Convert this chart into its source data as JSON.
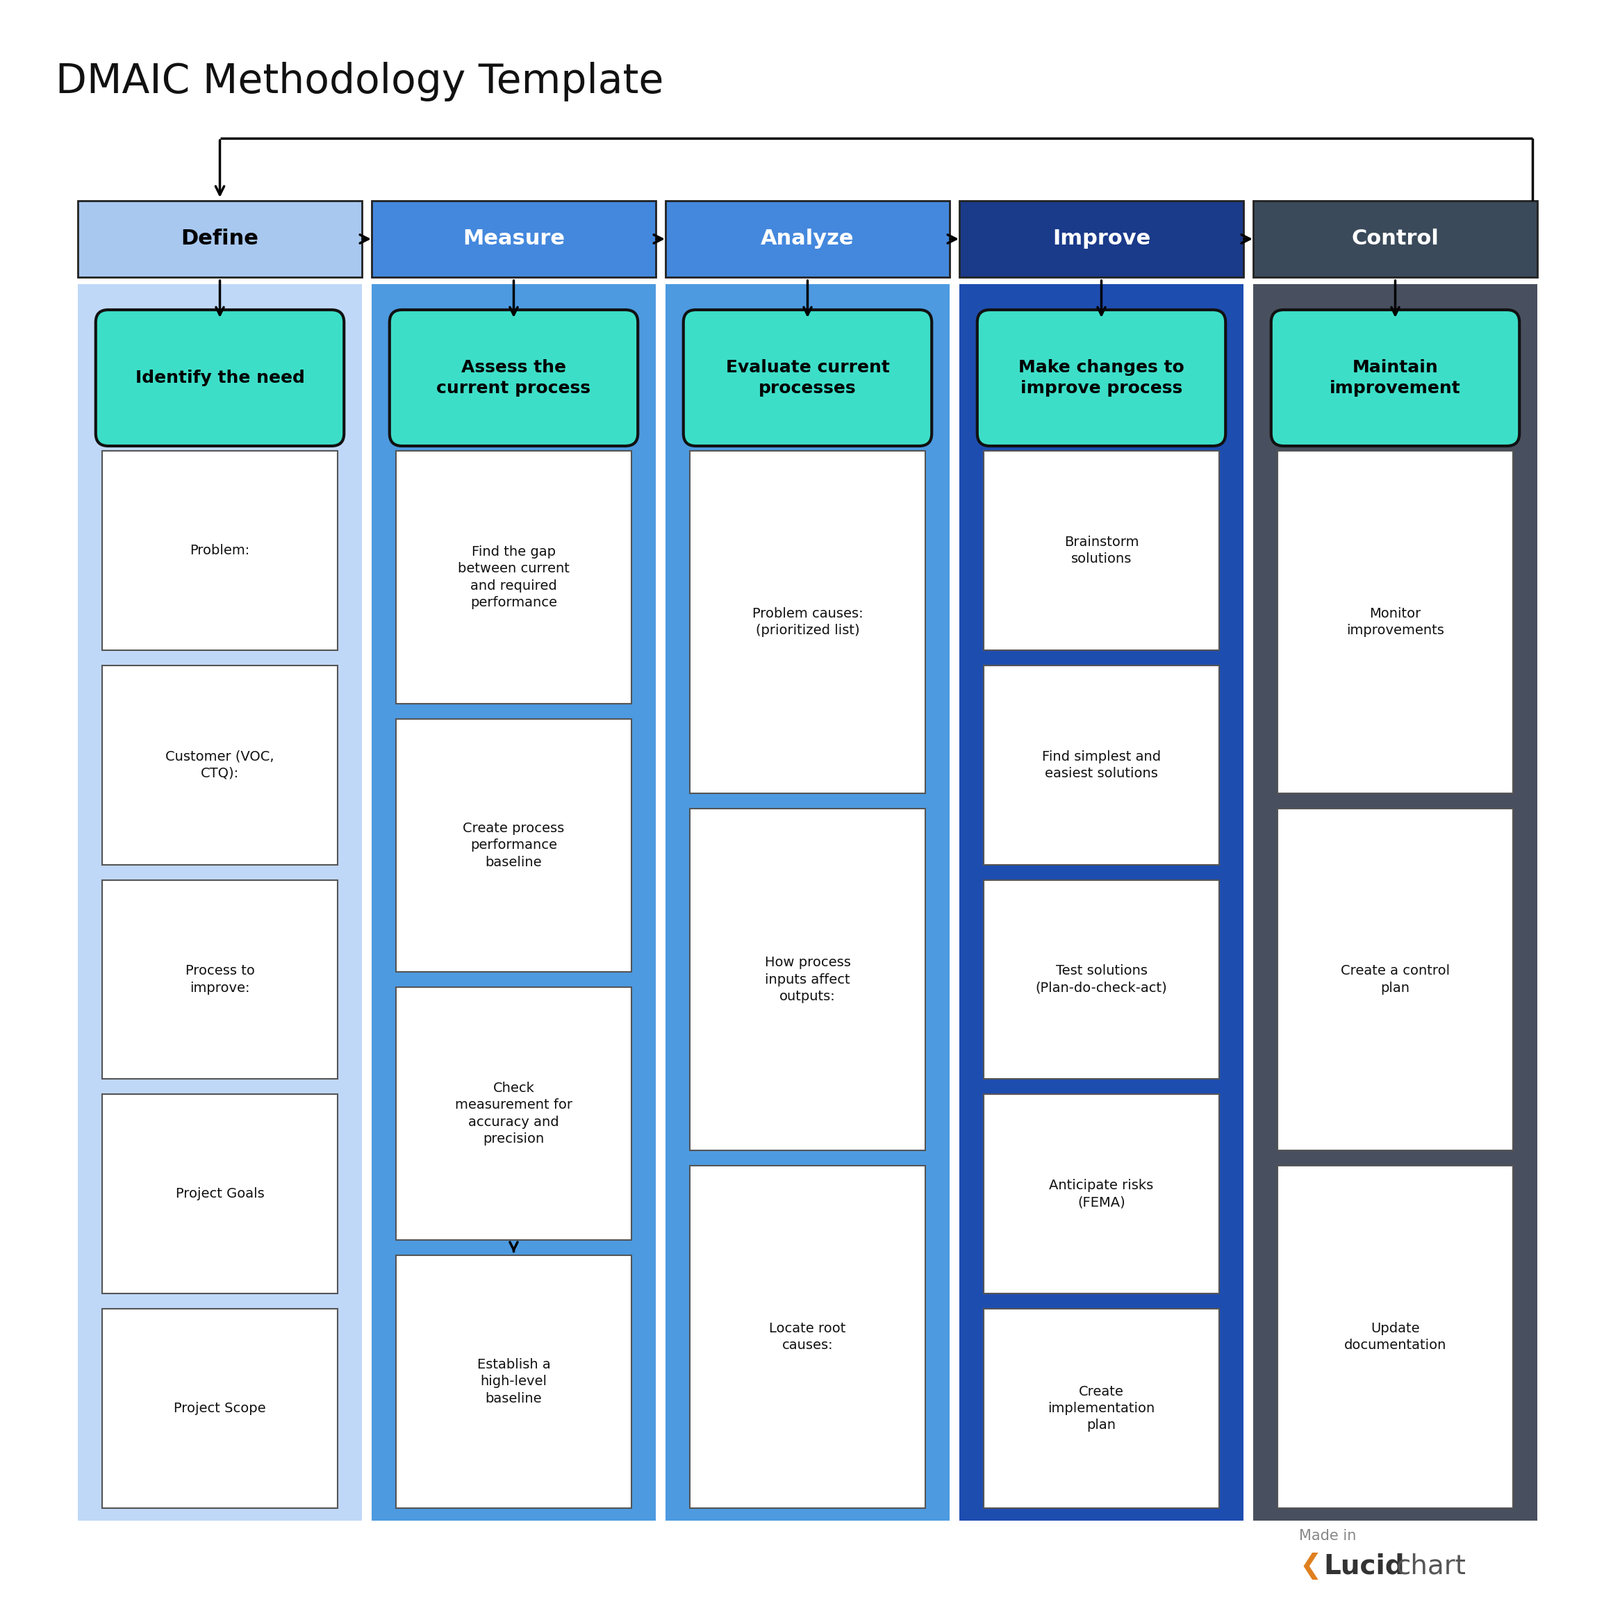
{
  "title": "DMAIC Methodology Template",
  "title_fontsize": 42,
  "phases": [
    "Define",
    "Measure",
    "Analyze",
    "Improve",
    "Control"
  ],
  "phase_colors": [
    "#a8c8f0",
    "#4488dd",
    "#4488dd",
    "#1a3a8a",
    "#3a4a5a"
  ],
  "phase_text_colors": [
    "#000000",
    "#ffffff",
    "#ffffff",
    "#ffffff",
    "#ffffff"
  ],
  "column_colors": [
    "#c0d8f8",
    "#4d9ae0",
    "#4d9ae0",
    "#1e4db0",
    "#484f5e"
  ],
  "teal_color": "#3ddec8",
  "sub_titles": [
    "Identify the need",
    "Assess the\ncurrent process",
    "Evaluate current\nprocesses",
    "Make changes to\nimprove process",
    "Maintain\nimprovement"
  ],
  "items": [
    [
      "Problem:",
      "Customer (VOC,\nCTQ):",
      "Process to\nimprove:",
      "Project Goals",
      "Project Scope"
    ],
    [
      "Find the gap\nbetween current\nand required\nperformance",
      "Create process\nperformance\nbaseline",
      "Check\nmeasurement for\naccuracy and\nprecision",
      "Establish a\nhigh-level\nbaseline"
    ],
    [
      "Problem causes:\n(prioritized list)",
      "How process\ninputs affect\noutputs:",
      "Locate root\ncauses:"
    ],
    [
      "Brainstorm\nsolutions",
      "Find simplest and\neasiest solutions",
      "Test solutions\n(Plan-do-check-act)",
      "Anticipate risks\n(FEMA)",
      "Create\nimplementation\nplan"
    ],
    [
      "Monitor\nimprovements",
      "Create a control\nplan",
      "Update\ndocumentation"
    ]
  ],
  "bg_color": "#ffffff"
}
